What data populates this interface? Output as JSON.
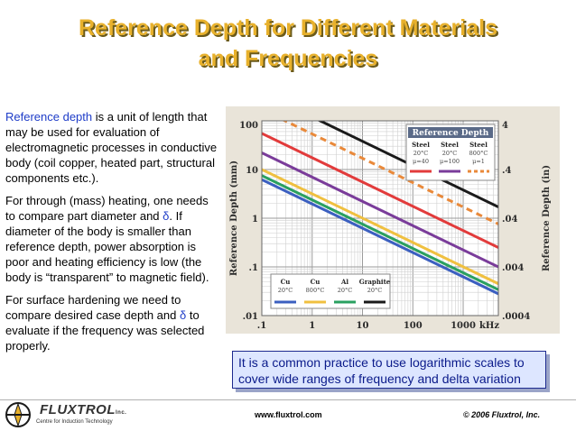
{
  "slide": {
    "title_line1": "Reference Depth for Different Materials",
    "title_line2": "and Frequencies",
    "para1_term": "Reference depth",
    "para1_rest": " is a unit of length that may be used for evaluation of electromagnetic processes in conductive body (coil copper, heated part, structural components etc.).",
    "para2_a": "For through (mass) heating, one needs to compare part diameter and ",
    "para2_delta": "δ",
    "para2_b": ". If diameter of the body is smaller than reference depth, power absorption is poor and heating efficiency is low (the body is “transparent” to magnetic field).",
    "para3_a": "For surface hardening we need to compare desired case depth and ",
    "para3_delta": "δ",
    "para3_b": " to evaluate if the frequency was selected properly.",
    "note": "It is a common practice to use logarithmic scales to cover wide ranges of  frequency and delta variation"
  },
  "footer": {
    "logo_name": "FLUXTROL",
    "logo_inc": "Inc.",
    "logo_tagline": "Centre for Induction Technology",
    "url": "www.fluxtrol.com",
    "copyright": "© 2006 Fluxtrol, Inc."
  },
  "colors": {
    "title": "#e8b12c",
    "accent_blue": "#1e3cc8",
    "steel_40": "#e23b3b",
    "steel_100": "#7a3c9a",
    "steel_800": "#e9893a",
    "cu_20": "#3b5fc0",
    "cu_800": "#f0c040",
    "al_20": "#2aa060",
    "graphite": "#1a1a1a"
  },
  "chart_data": {
    "type": "line",
    "title": "Reference Depth",
    "xlabel": "kHz",
    "ylabel": "Reference Depth (mm)",
    "ylabel_right": "Reference Depth (in)",
    "x_scale": "log",
    "y_scale": "log",
    "xlim": [
      0.1,
      5000
    ],
    "ylim": [
      0.01,
      100
    ],
    "x_ticks": [
      ".1",
      "1",
      "10",
      "100",
      "1000"
    ],
    "y_ticks_left": [
      ".01",
      ".1",
      "1",
      "10",
      "100"
    ],
    "y_ticks_right": [
      ".0004",
      ".004",
      ".04",
      ".4",
      "4"
    ],
    "grid": true,
    "legend_top": [
      {
        "name": "Steel",
        "line2": "20°C",
        "line3": "μ=40",
        "color": "#e23b3b",
        "dashed": false
      },
      {
        "name": "Steel",
        "line2": "20°C",
        "line3": "μ=100",
        "color": "#7a3c9a",
        "dashed": false
      },
      {
        "name": "Steel",
        "line2": "800°C",
        "line3": "μ=1",
        "color": "#e9893a",
        "dashed": true
      }
    ],
    "legend_bottom": [
      {
        "name": "Cu",
        "line2": "20°C",
        "color": "#3b5fc0"
      },
      {
        "name": "Cu",
        "line2": "800°C",
        "color": "#f0c040"
      },
      {
        "name": "Al",
        "line2": "20°C",
        "color": "#2aa060"
      },
      {
        "name": "Graphite",
        "line2": "20°C",
        "color": "#1a1a1a"
      }
    ],
    "series": [
      {
        "name": "Steel 800°C μ=1",
        "color": "#e9893a",
        "dashed": true,
        "x": [
          0.1,
          5000
        ],
        "y": [
          170,
          0.76
        ]
      },
      {
        "name": "Steel 20°C μ=40",
        "color": "#e23b3b",
        "dashed": false,
        "x": [
          0.1,
          5000
        ],
        "y": [
          55,
          0.25
        ]
      },
      {
        "name": "Steel 20°C μ=100",
        "color": "#7a3c9a",
        "dashed": false,
        "x": [
          0.1,
          5000
        ],
        "y": [
          22,
          0.1
        ]
      },
      {
        "name": "Graphite 20°C",
        "color": "#1a1a1a",
        "dashed": false,
        "x": [
          0.1,
          5000
        ],
        "y": [
          380,
          1.7
        ]
      },
      {
        "name": "Cu 800°C",
        "color": "#f0c040",
        "dashed": false,
        "x": [
          0.1,
          5000
        ],
        "y": [
          10,
          0.045
        ]
      },
      {
        "name": "Al 20°C",
        "color": "#2aa060",
        "dashed": false,
        "x": [
          0.1,
          5000
        ],
        "y": [
          7.5,
          0.034
        ]
      },
      {
        "name": "Cu 20°C",
        "color": "#3b5fc0",
        "dashed": false,
        "x": [
          0.1,
          5000
        ],
        "y": [
          6.2,
          0.028
        ]
      }
    ]
  }
}
